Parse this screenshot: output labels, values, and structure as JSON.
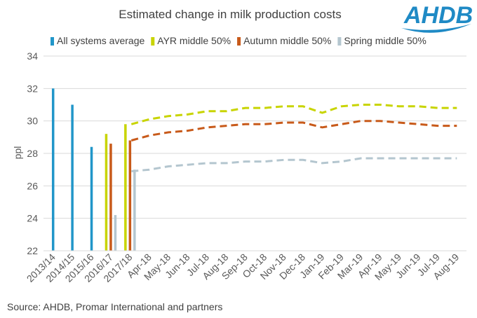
{
  "title": "Estimated change in milk production costs",
  "logo": {
    "text": "AHDB",
    "color": "#1f8ac5"
  },
  "source": "Source: AHDB, Promar International  and partners",
  "chart_data": {
    "type": "bar+line",
    "ylabel": "ppl",
    "ylim": [
      22,
      34
    ],
    "yticks": [
      22,
      24,
      26,
      28,
      30,
      32,
      34
    ],
    "grid": true,
    "legend_position": "top",
    "categories": [
      "2013/14",
      "2014/15",
      "2015/16",
      "2016/17",
      "2017/18",
      "Apr-18",
      "May-18",
      "Jun-18",
      "Jul-18",
      "Aug-18",
      "Sep-18",
      "Oct-18",
      "Nov-18",
      "Dec-18",
      "Jan-19",
      "Feb-19",
      "Mar-19",
      "Apr-19",
      "May-19",
      "Jun-19",
      "Jul-19",
      "Aug-19"
    ],
    "bar_series": [
      {
        "name": "All systems average",
        "color": "#2196c9",
        "values": [
          32.0,
          31.0,
          28.4,
          null,
          null
        ]
      },
      {
        "name": "AYR middle 50%",
        "color": "#c8d400",
        "values": [
          null,
          null,
          null,
          29.2,
          29.8
        ]
      },
      {
        "name": "Autumn middle 50%",
        "color": "#c85a1a",
        "values": [
          null,
          null,
          null,
          28.6,
          28.8
        ]
      },
      {
        "name": "Spring middle 50%",
        "color": "#b4c6cf",
        "values": [
          null,
          null,
          null,
          24.2,
          27.0
        ]
      }
    ],
    "line_series": [
      {
        "name": "AYR middle 50%",
        "color": "#c8d400",
        "values": [
          29.8,
          30.1,
          30.3,
          30.4,
          30.6,
          30.6,
          30.8,
          30.8,
          30.9,
          30.9,
          30.5,
          30.9,
          31.0,
          31.0,
          30.9,
          30.9,
          30.8,
          30.8
        ]
      },
      {
        "name": "Autumn middle 50%",
        "color": "#c85a1a",
        "values": [
          28.8,
          29.1,
          29.3,
          29.4,
          29.6,
          29.7,
          29.8,
          29.8,
          29.9,
          29.9,
          29.6,
          29.8,
          30.0,
          30.0,
          29.9,
          29.8,
          29.7,
          29.7
        ]
      },
      {
        "name": "Spring middle 50%",
        "color": "#b4c6cf",
        "values": [
          26.9,
          27.0,
          27.2,
          27.3,
          27.4,
          27.4,
          27.5,
          27.5,
          27.6,
          27.6,
          27.4,
          27.5,
          27.7,
          27.7,
          27.7,
          27.7,
          27.7,
          27.7
        ]
      }
    ]
  }
}
